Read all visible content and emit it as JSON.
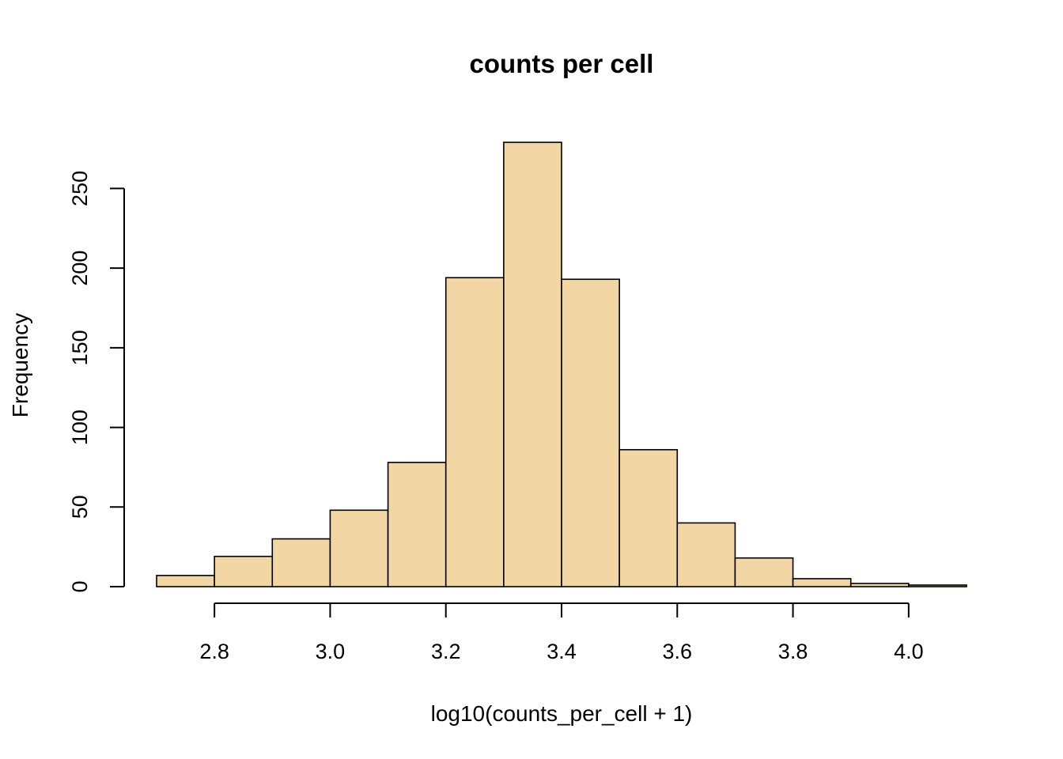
{
  "chart_data": {
    "type": "bar",
    "title": "counts per cell",
    "xlabel": "log10(counts_per_cell + 1)",
    "ylabel": "Frequency",
    "bin_edges": [
      2.7,
      2.8,
      2.9,
      3.0,
      3.1,
      3.2,
      3.3,
      3.4,
      3.5,
      3.6,
      3.7,
      3.8,
      3.9,
      4.0,
      4.1
    ],
    "values": [
      7,
      19,
      30,
      48,
      78,
      194,
      279,
      193,
      86,
      40,
      18,
      5,
      2,
      1
    ],
    "xlim": [
      2.7,
      4.1
    ],
    "ylim": [
      0,
      279
    ],
    "x_ticks": [
      "2.8",
      "3.0",
      "3.2",
      "3.4",
      "3.6",
      "3.8",
      "4.0"
    ],
    "y_ticks": [
      "0",
      "50",
      "100",
      "150",
      "200",
      "250"
    ],
    "bar_color": "#f2d6a3",
    "grid": false
  }
}
